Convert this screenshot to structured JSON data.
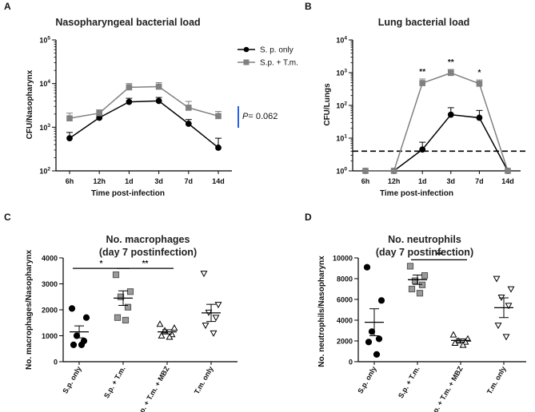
{
  "panels": {
    "a": "A",
    "b": "B",
    "c": "C",
    "d": "D"
  },
  "legend": {
    "entries": [
      "S. p. only",
      "S.p. + T.m."
    ],
    "colors": [
      "#000000",
      "#808080"
    ]
  },
  "pvalue": {
    "prefix": "P",
    "rest": "= 0.062",
    "bar_color": "#2c5fe6"
  },
  "chart_data": [
    {
      "type": "line",
      "title": "Nasopharyngeal bacterial load",
      "xlabel": "Time post-infection",
      "ylabel": "CFU/Nasopharynx",
      "yscale": "log",
      "ylim": [
        100,
        100000
      ],
      "yticks": [
        {
          "v": 100,
          "b": "10",
          "e": "2"
        },
        {
          "v": 1000,
          "b": "10",
          "e": "3"
        },
        {
          "v": 10000,
          "b": "10",
          "e": "4"
        },
        {
          "v": 100000,
          "b": "10",
          "e": "5"
        }
      ],
      "categories": [
        "6h",
        "12h",
        "1d",
        "3d",
        "7d",
        "14d"
      ],
      "series": [
        {
          "name": "S. p. only",
          "color": "#000000",
          "marker": "circle",
          "values": [
            560,
            1650,
            3800,
            4000,
            1200,
            340
          ],
          "err_up": [
            760,
            1900,
            4600,
            4800,
            1500,
            560
          ]
        },
        {
          "name": "S.p. + T.m.",
          "color": "#808080",
          "marker": "square",
          "values": [
            1600,
            2100,
            8200,
            8500,
            2800,
            1800
          ],
          "err_up": [
            2100,
            2500,
            10000,
            10500,
            3900,
            2300
          ]
        }
      ]
    },
    {
      "type": "line",
      "title": "Lung bacterial load",
      "xlabel": "Time post-infection",
      "ylabel": "CFU/Lungs",
      "yscale": "log",
      "ylim": [
        1,
        10000
      ],
      "yticks": [
        {
          "v": 1,
          "b": "10",
          "e": "0"
        },
        {
          "v": 10,
          "b": "10",
          "e": "1"
        },
        {
          "v": 100,
          "b": "10",
          "e": "2"
        },
        {
          "v": 1000,
          "b": "10",
          "e": "3"
        },
        {
          "v": 10000,
          "b": "10",
          "e": "4"
        }
      ],
      "categories": [
        "6h",
        "12h",
        "1d",
        "3d",
        "7d",
        "14d"
      ],
      "detection_limit": 4,
      "series": [
        {
          "name": "S. p. only",
          "color": "#000000",
          "marker": "circle",
          "values": [
            1,
            1,
            4.5,
            52,
            42,
            1
          ],
          "err_up": [
            1,
            1,
            7.5,
            85,
            70,
            1
          ]
        },
        {
          "name": "S.p. + T.m.",
          "color": "#808080",
          "marker": "square",
          "values": [
            1,
            1,
            480,
            980,
            460,
            1
          ],
          "err_up": [
            1,
            1,
            640,
            1250,
            600,
            1
          ]
        }
      ],
      "annotations": [
        {
          "x": "1d",
          "text": "**"
        },
        {
          "x": "3d",
          "text": "**"
        },
        {
          "x": "7d",
          "text": "*"
        }
      ]
    },
    {
      "type": "scatter",
      "title": "No. macrophages",
      "subtitle": "(day 7 postinfection)",
      "ylabel": "No. macrophages/Nasopharynx",
      "ylim": [
        0,
        4000
      ],
      "yticks": [
        0,
        1000,
        2000,
        3000,
        4000
      ],
      "categories": [
        "S.p. only",
        "S.p. + T.m.",
        "S.p. + T.m. + MBZ",
        "T.m. only"
      ],
      "markers": [
        "circle",
        "square",
        "triangle-up",
        "triangle-down"
      ],
      "fills": [
        "#000000",
        "#9a9a9a",
        "#ffffff",
        "#ffffff"
      ],
      "points": [
        [
          2050,
          1700,
          1000,
          800,
          650,
          650
        ],
        [
          3350,
          2700,
          2500,
          2100,
          1700,
          1600
        ],
        [
          1450,
          1300,
          1200,
          1050,
          1000,
          950
        ],
        [
          3400,
          2200,
          1900,
          1700,
          1400,
          1100
        ]
      ],
      "means": [
        1150,
        2450,
        1150,
        1880
      ],
      "sems": [
        230,
        280,
        80,
        330
      ],
      "significance": [
        {
          "from": 0,
          "to": 1,
          "text": "*"
        },
        {
          "from": 1,
          "to": 2,
          "text": "**"
        }
      ]
    },
    {
      "type": "scatter",
      "title": "No. neutrophils",
      "subtitle": "(day 7 postinfection)",
      "ylabel": "No. neutrophils/Nasopharynx",
      "ylim": [
        0,
        10000
      ],
      "yticks": [
        0,
        2000,
        4000,
        6000,
        8000,
        10000
      ],
      "categories": [
        "S.p. only",
        "S.p. + T.m.",
        "S.p. + T.m. + MBZ",
        "T.m. only"
      ],
      "markers": [
        "circle",
        "square",
        "triangle-up",
        "triangle-down"
      ],
      "fills": [
        "#000000",
        "#9a9a9a",
        "#ffffff",
        "#ffffff"
      ],
      "points": [
        [
          9100,
          5900,
          2900,
          2200,
          1900,
          700
        ],
        [
          9200,
          8300,
          7800,
          7400,
          7000,
          6600
        ],
        [
          2600,
          2200,
          2000,
          1900,
          1800,
          1600
        ],
        [
          8000,
          7000,
          6200,
          5400,
          3500,
          2400
        ]
      ],
      "means": [
        3800,
        7900,
        2050,
        5200
      ],
      "sems": [
        1300,
        450,
        150,
        950
      ],
      "significance": [
        {
          "from": 1,
          "to": 2,
          "text": "**"
        }
      ]
    }
  ]
}
